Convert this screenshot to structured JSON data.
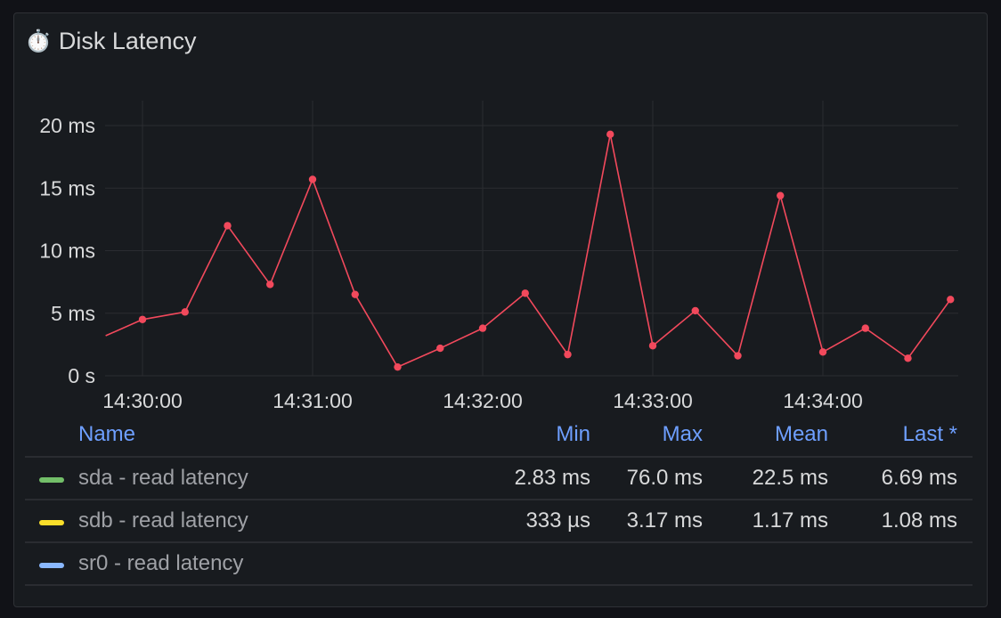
{
  "panel": {
    "title": "Disk Latency",
    "icon": "⏱️"
  },
  "legend": {
    "headers": {
      "name": "Name",
      "min": "Min",
      "max": "Max",
      "mean": "Mean",
      "last": "Last *"
    },
    "rows": [
      {
        "name": "sda - read latency",
        "color": "#73bf69",
        "min": "2.83 ms",
        "max": "76.0 ms",
        "mean": "22.5 ms",
        "last": "6.69 ms"
      },
      {
        "name": "sdb - read latency",
        "color": "#fade2a",
        "min": "333 µs",
        "max": "3.17 ms",
        "mean": "1.17 ms",
        "last": "1.08 ms"
      },
      {
        "name": "sr0 - read latency",
        "color": "#8ab8ff",
        "min": "",
        "max": "",
        "mean": "",
        "last": ""
      }
    ]
  },
  "chart_data": {
    "type": "line",
    "y_tick_labels": [
      "0 s",
      "5 ms",
      "10 ms",
      "15 ms",
      "20 ms"
    ],
    "y_ticks": [
      0,
      5,
      10,
      15,
      20
    ],
    "ylim": [
      0,
      20
    ],
    "x_tick_labels": [
      "14:30:00",
      "14:31:00",
      "14:32:00",
      "14:33:00",
      "14:34:00"
    ],
    "grid": true,
    "series": [
      {
        "color": "#f2495c",
        "x": [
          "14:29:47",
          "14:30:00",
          "14:30:15",
          "14:30:30",
          "14:30:45",
          "14:31:00",
          "14:31:15",
          "14:31:30",
          "14:31:45",
          "14:32:00",
          "14:32:15",
          "14:32:30",
          "14:32:45",
          "14:33:00",
          "14:33:15",
          "14:33:30",
          "14:33:45",
          "14:34:00",
          "14:34:15",
          "14:34:30",
          "14:34:45"
        ],
        "values": [
          3.2,
          4.5,
          5.1,
          12.0,
          7.3,
          15.7,
          6.5,
          0.7,
          2.2,
          3.8,
          6.6,
          1.7,
          19.3,
          2.4,
          5.2,
          1.6,
          14.4,
          1.9,
          3.8,
          1.4,
          6.1
        ],
        "markers": [
          false,
          true,
          true,
          true,
          true,
          true,
          true,
          true,
          true,
          true,
          true,
          true,
          true,
          true,
          true,
          true,
          true,
          true,
          true,
          true,
          true
        ]
      }
    ]
  }
}
